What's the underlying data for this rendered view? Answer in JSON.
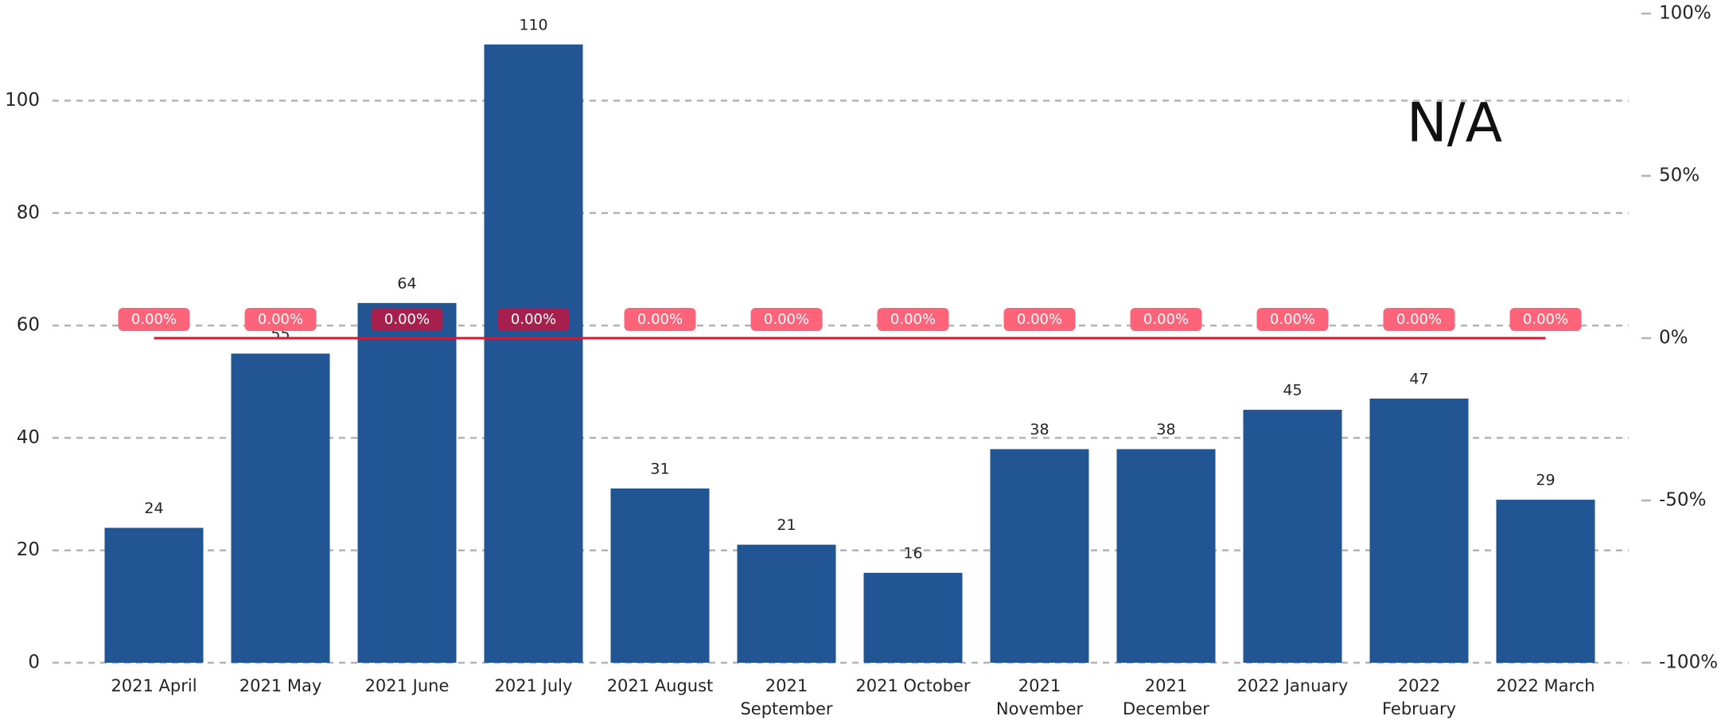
{
  "chart_data": {
    "type": "bar",
    "annotation": "N/A",
    "categories": [
      "2021 April",
      "2021 May",
      "2021 June",
      "2021 July",
      "2021 August",
      "2021 September",
      "2021 October",
      "2021 November",
      "2021 December",
      "2022 January",
      "2022 February",
      "2022 March"
    ],
    "series": [
      {
        "type": "bar",
        "color": "#215594",
        "values": [
          24,
          55,
          64,
          110,
          31,
          21,
          16,
          38,
          38,
          45,
          47,
          29
        ]
      },
      {
        "type": "line",
        "axis": "y2",
        "color": "#e8112d",
        "label_color": "#fd6479",
        "label_color_on_bar": "#a61f4d",
        "values": [
          0,
          0,
          0,
          0,
          0,
          0,
          0,
          0,
          0,
          0,
          0,
          0
        ],
        "value_labels": [
          "0.00%",
          "0.00%",
          "0.00%",
          "0.00%",
          "0.00%",
          "0.00%",
          "0.00%",
          "0.00%",
          "0.00%",
          "0.00%",
          "0.00%",
          "0.00%"
        ]
      }
    ],
    "ylim": [
      0,
      115.5
    ],
    "yticks": [
      0,
      20,
      40,
      60,
      80,
      100
    ],
    "y2lim": [
      -100,
      100
    ],
    "y2ticks": [
      {
        "value": -100,
        "label": "-100%"
      },
      {
        "value": -50,
        "label": "-50%"
      },
      {
        "value": 0,
        "label": "0%"
      },
      {
        "value": 50,
        "label": "50%"
      },
      {
        "value": 100,
        "label": "100%"
      }
    ],
    "grid": true
  }
}
